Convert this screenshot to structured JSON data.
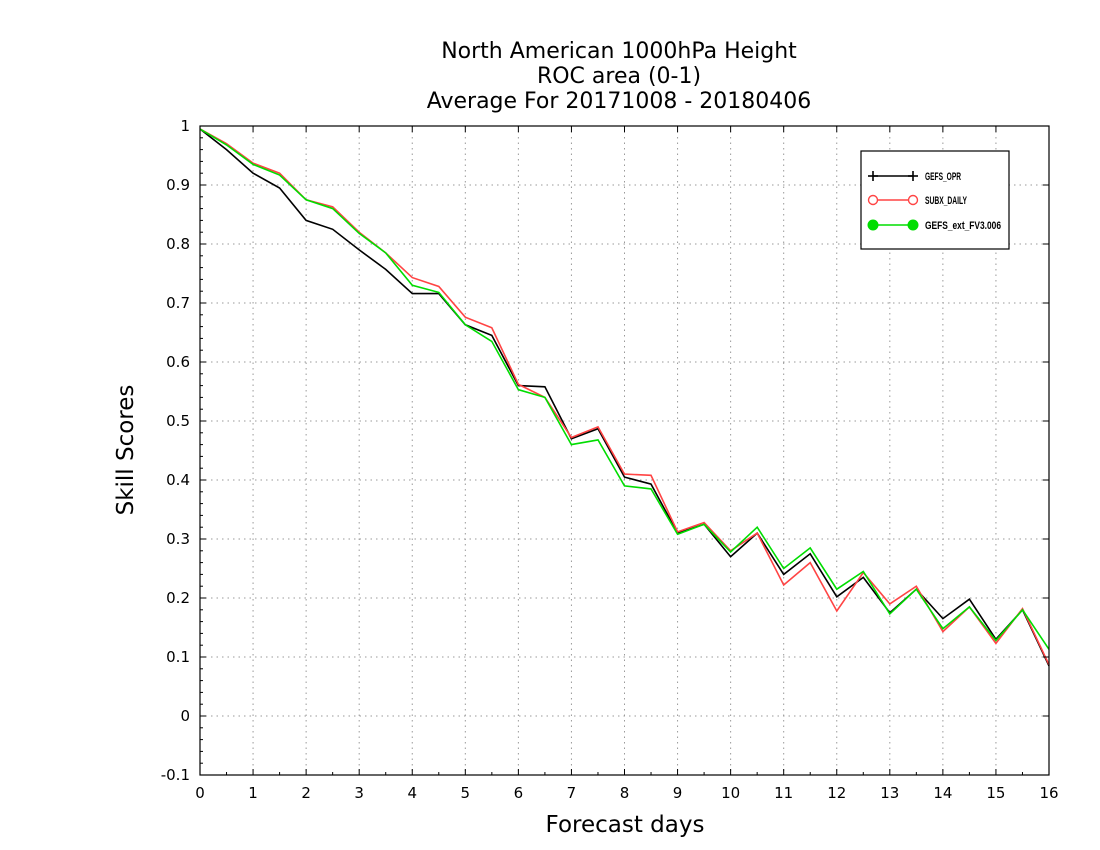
{
  "chart_data": {
    "type": "line",
    "title": "North American 1000hPa Height",
    "subtitle_lines": [
      "ROC area (0-1)",
      "Average For 20171008 - 20180406"
    ],
    "xlabel": "Forecast days",
    "ylabel": "Skill Scores",
    "xlim": [
      0,
      16
    ],
    "ylim": [
      -0.1,
      1
    ],
    "xticks": [
      0,
      1,
      2,
      3,
      4,
      5,
      6,
      7,
      8,
      9,
      10,
      11,
      12,
      13,
      14,
      15,
      16
    ],
    "yticks": [
      -0.1,
      0,
      0.1,
      0.2,
      0.3,
      0.4,
      0.5,
      0.6,
      0.7,
      0.8,
      0.9,
      1
    ],
    "ytick_labels": [
      "-0.1",
      "0",
      "0.1",
      "0.2",
      "0.3",
      "0.4",
      "0.5",
      "0.6",
      "0.7",
      "0.8",
      "0.9",
      "1"
    ],
    "grid": true,
    "legend_position": "top-right",
    "x": [
      0,
      0.5,
      1,
      1.5,
      2,
      2.5,
      3,
      3.5,
      4,
      4.5,
      5,
      5.5,
      6,
      6.5,
      7,
      7.5,
      8,
      8.5,
      9,
      9.5,
      10,
      10.5,
      11,
      11.5,
      12,
      12.5,
      13,
      13.5,
      14,
      14.5,
      15,
      15.5,
      16
    ],
    "series": [
      {
        "name": "GEFS_OPR",
        "color": "#000000",
        "marker": "plus",
        "values": [
          0.995,
          0.96,
          0.92,
          0.895,
          0.84,
          0.825,
          0.79,
          0.757,
          0.716,
          0.716,
          0.663,
          0.645,
          0.56,
          0.558,
          0.47,
          0.487,
          0.405,
          0.393,
          0.31,
          0.325,
          0.27,
          0.31,
          0.24,
          0.275,
          0.202,
          0.235,
          0.175,
          0.215,
          0.165,
          0.198,
          0.13,
          0.18,
          0.085
        ]
      },
      {
        "name": "SUBX_DAILY",
        "color": "#ff4444",
        "marker": "open-circle",
        "values": [
          0.995,
          0.97,
          0.937,
          0.92,
          0.875,
          0.863,
          0.82,
          0.785,
          0.743,
          0.728,
          0.676,
          0.658,
          0.562,
          0.54,
          0.472,
          0.49,
          0.41,
          0.408,
          0.312,
          0.328,
          0.28,
          0.31,
          0.222,
          0.26,
          0.178,
          0.243,
          0.19,
          0.22,
          0.143,
          0.185,
          0.123,
          0.182,
          0.087
        ]
      },
      {
        "name": "GEFS_ext_FV3.006",
        "color": "#00dd00",
        "marker": "filled-circle",
        "values": [
          0.995,
          0.968,
          0.935,
          0.917,
          0.875,
          0.86,
          0.818,
          0.785,
          0.73,
          0.718,
          0.663,
          0.635,
          0.553,
          0.54,
          0.46,
          0.468,
          0.39,
          0.385,
          0.308,
          0.325,
          0.278,
          0.32,
          0.25,
          0.285,
          0.215,
          0.245,
          0.173,
          0.215,
          0.148,
          0.185,
          0.128,
          0.18,
          0.113
        ]
      }
    ]
  }
}
